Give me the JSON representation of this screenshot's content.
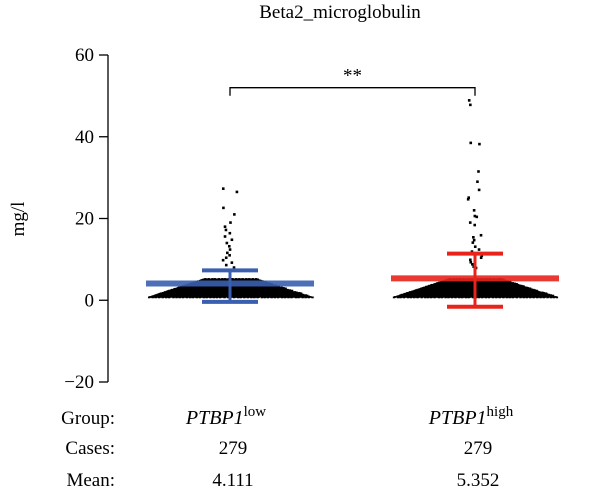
{
  "chart_data": {
    "type": "scatter",
    "title": "Beta2_microglobulin",
    "ylabel": "mg/l",
    "ylim": [
      -20,
      60
    ],
    "yticks": [
      -20,
      0,
      20,
      40,
      60
    ],
    "grid": false,
    "significance": "**",
    "groups": [
      {
        "gene": "PTBP1",
        "level": "low",
        "cases": "279",
        "mean_label": "4.111",
        "mean": 4.111,
        "sd_upper": 7.3,
        "sd_lower": -0.4,
        "color": "#3a5fb0",
        "outliers": [
          27.3,
          26.5,
          22.6,
          21.0,
          19.0,
          18.0,
          17.2,
          16.4,
          15.6,
          14.8,
          14.0,
          13.2,
          12.4,
          11.6,
          11.0,
          10.4,
          9.8,
          9.2,
          8.6,
          8.0
        ]
      },
      {
        "gene": "PTBP1",
        "level": "high",
        "cases": "279",
        "mean_label": "5.352",
        "mean": 5.352,
        "sd_upper": 11.4,
        "sd_lower": -1.6,
        "color": "#e8231b",
        "outliers": [
          48.9,
          47.8,
          38.5,
          38.2,
          31.5,
          29.0,
          27.0,
          25.1,
          24.7,
          22.0,
          20.6,
          20.4,
          19.0,
          18.4,
          15.9,
          15.4,
          14.7,
          14.1,
          13.1,
          12.4,
          11.9,
          10.9,
          10.4,
          9.9,
          9.3,
          8.8,
          8.2,
          7.9
        ]
      }
    ],
    "table": {
      "row_labels": [
        "Group:",
        "Cases:",
        "Mean:"
      ]
    }
  }
}
